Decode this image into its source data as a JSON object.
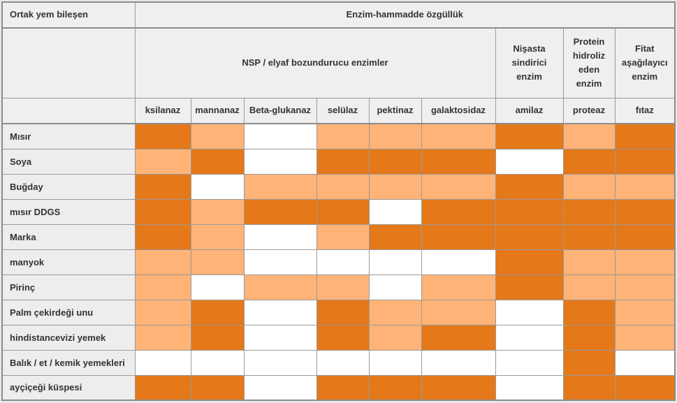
{
  "colors": {
    "dark": "#e57818",
    "light": "#ffb377",
    "white": "#ffffff",
    "header_bg": "#efefef",
    "label_bg": "#ededed",
    "page_bg": "#e8e8e8",
    "border": "#9a9a9a",
    "text": "#333333"
  },
  "header": {
    "corner_label": "Ortak yem bileşen",
    "title": "Enzim-hammadde özgüllük",
    "groups": [
      "NSP / elyaf bozundurucu enzimler",
      "Nişasta sindirici enzim",
      "Protein hidroliz eden enzim",
      "Fitat aşağılayıcı enzim"
    ],
    "enzymes": [
      "ksilanaz",
      "mannanaz",
      "Beta-glukanaz",
      "selülaz",
      "pektinaz",
      "galaktosidaz",
      "amilaz",
      "proteaz",
      "fıtaz"
    ]
  },
  "rows": [
    {
      "label": "Mısır",
      "cells": [
        "dark",
        "light",
        "white",
        "light",
        "light",
        "light",
        "dark",
        "light",
        "dark"
      ]
    },
    {
      "label": "Soya",
      "cells": [
        "light",
        "dark",
        "white",
        "dark",
        "dark",
        "dark",
        "white",
        "dark",
        "dark"
      ]
    },
    {
      "label": "Buğday",
      "cells": [
        "dark",
        "white",
        "light",
        "light",
        "light",
        "light",
        "dark",
        "light",
        "light"
      ]
    },
    {
      "label": "mısır DDGS",
      "cells": [
        "dark",
        "light",
        "dark",
        "dark",
        "white",
        "dark",
        "dark",
        "dark",
        "dark"
      ]
    },
    {
      "label": "Marka",
      "cells": [
        "dark",
        "light",
        "white",
        "light",
        "dark",
        "dark",
        "dark",
        "dark",
        "dark"
      ]
    },
    {
      "label": "manyok",
      "cells": [
        "light",
        "light",
        "white",
        "white",
        "white",
        "white",
        "dark",
        "light",
        "light"
      ]
    },
    {
      "label": "Pirinç",
      "cells": [
        "light",
        "white",
        "light",
        "light",
        "white",
        "light",
        "dark",
        "light",
        "light"
      ]
    },
    {
      "label": "Palm çekirdeği unu",
      "cells": [
        "light",
        "dark",
        "white",
        "dark",
        "light",
        "light",
        "white",
        "dark",
        "light"
      ]
    },
    {
      "label": "hindistancevizi yemek",
      "cells": [
        "light",
        "dark",
        "white",
        "dark",
        "light",
        "dark",
        "white",
        "dark",
        "light"
      ]
    },
    {
      "label": "Balık / et / kemik yemekleri",
      "cells": [
        "white",
        "white",
        "white",
        "white",
        "white",
        "white",
        "white",
        "dark",
        "white"
      ]
    },
    {
      "label": "ayçiçeği küspesi",
      "cells": [
        "dark",
        "dark",
        "white",
        "dark",
        "dark",
        "dark",
        "white",
        "dark",
        "dark"
      ]
    }
  ],
  "chart_data": {
    "type": "heatmap",
    "title": "Enzim-hammadde özgüllük",
    "x_categories": [
      "ksilanaz",
      "mannanaz",
      "Beta-glukanaz",
      "selülaz",
      "pektinaz",
      "galaktosidaz",
      "amilaz",
      "proteaz",
      "fıtaz"
    ],
    "x_groups": [
      {
        "label": "NSP / elyaf bozundurucu enzimler",
        "span": 6
      },
      {
        "label": "Nişasta sindirici enzim",
        "span": 1
      },
      {
        "label": "Protein hidroliz eden enzim",
        "span": 1
      },
      {
        "label": "Fitat aşağılayıcı enzim",
        "span": 1
      }
    ],
    "y_categories": [
      "Mısır",
      "Soya",
      "Buğday",
      "mısır DDGS",
      "Marka",
      "manyok",
      "Pirinç",
      "Palm çekirdeği unu",
      "hindistancevizi yemek",
      "Balık / et / kemik yemekleri",
      "ayçiçeği küspesi"
    ],
    "levels": {
      "dark": "#e57818",
      "light": "#ffb377",
      "white": "#ffffff"
    },
    "values": [
      [
        "dark",
        "light",
        "white",
        "light",
        "light",
        "light",
        "dark",
        "light",
        "dark"
      ],
      [
        "light",
        "dark",
        "white",
        "dark",
        "dark",
        "dark",
        "white",
        "dark",
        "dark"
      ],
      [
        "dark",
        "white",
        "light",
        "light",
        "light",
        "light",
        "dark",
        "light",
        "light"
      ],
      [
        "dark",
        "light",
        "dark",
        "dark",
        "white",
        "dark",
        "dark",
        "dark",
        "dark"
      ],
      [
        "dark",
        "light",
        "white",
        "light",
        "dark",
        "dark",
        "dark",
        "dark",
        "dark"
      ],
      [
        "light",
        "light",
        "white",
        "white",
        "white",
        "white",
        "dark",
        "light",
        "light"
      ],
      [
        "light",
        "white",
        "light",
        "light",
        "white",
        "light",
        "dark",
        "light",
        "light"
      ],
      [
        "light",
        "dark",
        "white",
        "dark",
        "light",
        "light",
        "white",
        "dark",
        "light"
      ],
      [
        "light",
        "dark",
        "white",
        "dark",
        "light",
        "dark",
        "white",
        "dark",
        "light"
      ],
      [
        "white",
        "white",
        "white",
        "white",
        "white",
        "white",
        "white",
        "dark",
        "white"
      ],
      [
        "dark",
        "dark",
        "white",
        "dark",
        "dark",
        "dark",
        "white",
        "dark",
        "dark"
      ]
    ],
    "grid": true,
    "legend_position": "none"
  }
}
